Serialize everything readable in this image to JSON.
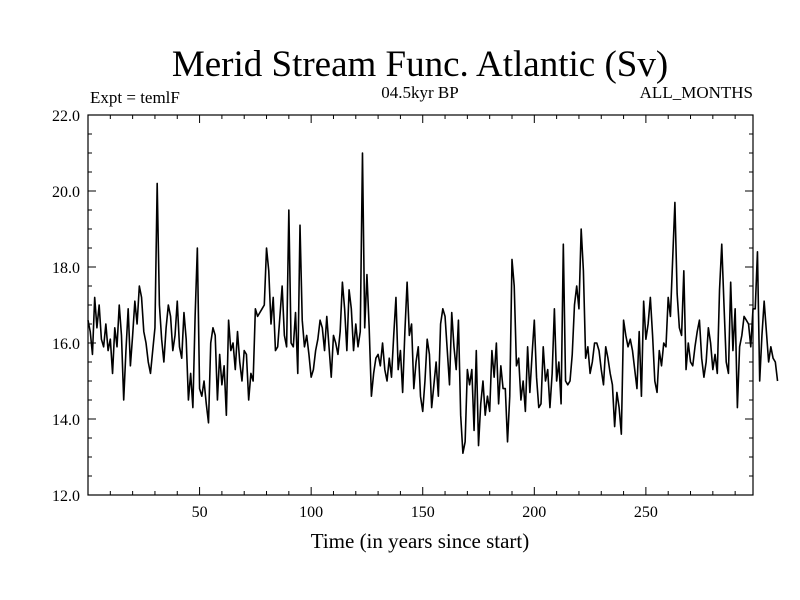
{
  "chart_data": {
    "type": "line",
    "title": "Merid Stream Func. Atlantic (Sv)",
    "subtitle_left": "Expt = temlF",
    "subtitle_center": "04.5kyr BP",
    "subtitle_right": "ALL_MONTHS",
    "xlabel": "Time (in years since start)",
    "ylabel": "",
    "xlim": [
      0,
      298
    ],
    "ylim": [
      12.0,
      22.0
    ],
    "x_ticks": [
      50,
      100,
      150,
      200,
      250
    ],
    "x_tick_labels": [
      "50",
      "100",
      "150",
      "200",
      "250"
    ],
    "y_ticks": [
      12,
      14,
      16,
      18,
      20,
      22
    ],
    "y_tick_labels": [
      "12.0",
      "14.0",
      "16.0",
      "18.0",
      "20.0",
      "22.0"
    ],
    "grid": false,
    "series": [
      {
        "name": "Merid Stream Func. Atlantic",
        "color": "#000000",
        "x_start": 0,
        "x_step": 1,
        "values": [
          16.6,
          16.3,
          15.7,
          17.2,
          16.4,
          17.0,
          16.1,
          15.9,
          16.5,
          15.8,
          16.1,
          15.2,
          16.4,
          15.9,
          17.0,
          16.2,
          14.5,
          15.8,
          16.9,
          15.4,
          16.2,
          17.1,
          16.5,
          17.5,
          17.2,
          16.3,
          16.0,
          15.5,
          15.2,
          15.8,
          16.4,
          20.2,
          17.0,
          16.1,
          15.5,
          16.4,
          17.0,
          16.7,
          15.8,
          16.2,
          17.1,
          15.9,
          15.6,
          16.8,
          16.1,
          14.5,
          15.2,
          14.3,
          16.7,
          18.5,
          14.8,
          14.6,
          15.0,
          14.4,
          13.9,
          16.0,
          16.4,
          16.2,
          14.5,
          15.7,
          14.9,
          15.4,
          14.1,
          16.6,
          15.8,
          16.0,
          15.3,
          16.3,
          15.5,
          15.0,
          15.8,
          15.7,
          14.5,
          15.2,
          15.0,
          16.9,
          16.7,
          16.8,
          16.9,
          17.0,
          18.5,
          17.9,
          16.5,
          17.2,
          15.8,
          15.9,
          16.7,
          17.5,
          16.2,
          15.9,
          19.5,
          16.0,
          15.9,
          16.8,
          15.2,
          19.1,
          16.6,
          15.9,
          16.2,
          15.7,
          15.1,
          15.3,
          15.8,
          16.1,
          16.6,
          16.4,
          15.8,
          16.7,
          15.9,
          15.1,
          16.2,
          16.0,
          15.7,
          16.3,
          17.6,
          16.9,
          15.8,
          17.4,
          16.9,
          15.8,
          16.5,
          15.9,
          16.3,
          21.0,
          16.4,
          17.8,
          16.4,
          14.6,
          15.2,
          15.6,
          15.7,
          15.4,
          16.0,
          15.3,
          15.0,
          15.6,
          15.1,
          16.2,
          17.2,
          15.3,
          15.8,
          14.7,
          16.3,
          17.6,
          16.2,
          16.5,
          14.8,
          15.5,
          15.9,
          14.6,
          14.2,
          15.0,
          16.1,
          15.7,
          14.3,
          14.9,
          15.5,
          14.6,
          16.5,
          16.9,
          16.7,
          15.8,
          14.9,
          16.8,
          15.9,
          15.3,
          16.6,
          14.1,
          13.1,
          13.4,
          15.3,
          14.9,
          15.3,
          13.7,
          15.8,
          13.3,
          14.4,
          15.0,
          14.1,
          14.6,
          14.2,
          15.8,
          15.1,
          16.0,
          14.4,
          15.4,
          14.8,
          14.8,
          13.4,
          14.6,
          18.2,
          17.5,
          15.4,
          15.6,
          14.5,
          15.0,
          14.2,
          15.9,
          14.7,
          15.7,
          16.6,
          15.1,
          14.3,
          14.4,
          15.9,
          15.0,
          15.3,
          14.3,
          15.2,
          16.9,
          15.0,
          15.5,
          14.4,
          18.6,
          15.0,
          14.9,
          15.0,
          15.7,
          17.0,
          17.5,
          16.9,
          19.0,
          17.9,
          15.6,
          15.9,
          15.2,
          15.5,
          16.0,
          16.0,
          15.8,
          15.3,
          14.9,
          15.9,
          15.6,
          15.2,
          14.9,
          13.8,
          14.7,
          14.3,
          13.6,
          16.6,
          16.2,
          15.9,
          16.1,
          15.8,
          15.3,
          14.8,
          16.3,
          14.6,
          17.1,
          16.1,
          16.5,
          17.2,
          16.2,
          15.0,
          14.7,
          15.8,
          15.4,
          16.0,
          15.9,
          17.2,
          16.7,
          18.2,
          19.7,
          17.3,
          16.4,
          16.2,
          17.9,
          15.3,
          16.0,
          15.5,
          15.4,
          15.9,
          16.3,
          16.6,
          15.6,
          15.1,
          15.5,
          16.4,
          16.0,
          15.3,
          15.7,
          15.2,
          17.4,
          18.6,
          17.0,
          15.5,
          15.2,
          17.6,
          15.8,
          16.9,
          14.3,
          15.9,
          16.2,
          16.7,
          16.6,
          16.5,
          15.9,
          16.9,
          16.9,
          18.4,
          15.0,
          16.2,
          17.1,
          16.3,
          15.5,
          15.9,
          15.6,
          15.5,
          15.0
        ]
      }
    ]
  }
}
